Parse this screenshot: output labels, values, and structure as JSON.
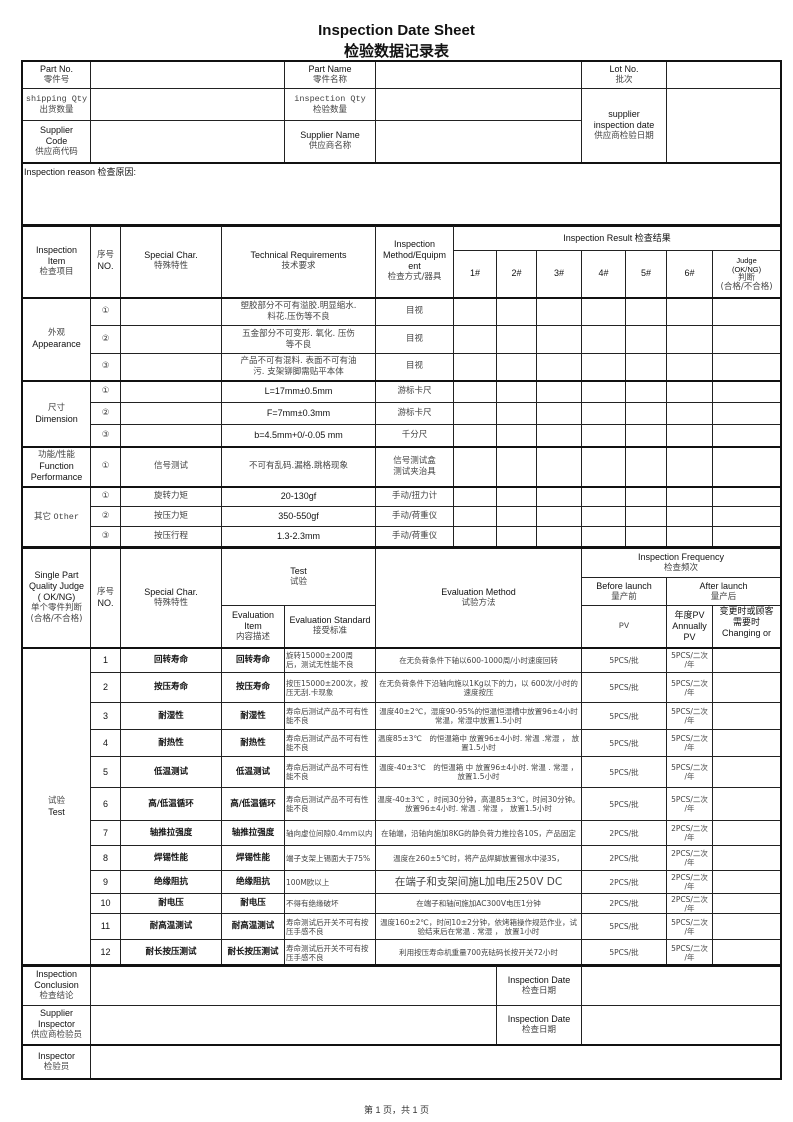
{
  "title_en": "Inspection Date Sheet",
  "title_cn": "检验数据记录表",
  "header": {
    "part_no": {
      "en": "Part No.",
      "cn": "零件号"
    },
    "part_name": {
      "en": "Part Name",
      "cn": "零件名称"
    },
    "lot_no": {
      "en": "Lot No.",
      "cn": "批次"
    },
    "shipping_qty": {
      "en": "shipping Qty",
      "cn": "出货数量"
    },
    "inspection_qty": {
      "en": "inspection Qty",
      "cn": "检验数量"
    },
    "supplier_code": {
      "en": "Supplier\nCode",
      "cn": "供应商代码"
    },
    "supplier_name": {
      "en": "Supplier Name",
      "cn": "供应商名称"
    },
    "supplier_inspection_date": {
      "en": "supplier\ninspection date",
      "cn": "供应商检验日期"
    }
  },
  "inspection_reason": "Inspection reason 检查原因:",
  "inspection": {
    "col_item": {
      "en": "Inspection\nItem",
      "cn": "检查项目"
    },
    "col_no": {
      "cn": "序号",
      "en": "NO."
    },
    "col_special": {
      "en": "Special Char.",
      "cn": "特殊特性"
    },
    "col_req": {
      "en": "Technical Requirements",
      "cn": "技术要求"
    },
    "col_method": {
      "en": "Inspection\nMethod/Equipm\nent",
      "cn": "检查方式/器具"
    },
    "col_result": "Inspection Result 检查结果",
    "samples": [
      "1#",
      "2#",
      "3#",
      "4#",
      "5#",
      "6#"
    ],
    "col_judge": {
      "en": "Judge\n(OK/NG)",
      "cn": "判断\n(合格/不合格)"
    },
    "groups": [
      {
        "label_cn": "外观",
        "label_en": "Appearance",
        "rows": [
          {
            "no": "①",
            "special": "",
            "req": "塑胶部分不可有溢胶.明显缩水.\n料花.压伤等不良",
            "method": "目视"
          },
          {
            "no": "②",
            "special": "",
            "req": "五金部分不可变形. 氧化. 压伤\n等不良",
            "method": "目视"
          },
          {
            "no": "③",
            "special": "",
            "req": "产品不可有混料. 表面不可有油\n污. 支架铆脚需贴平本体",
            "method": "目视"
          }
        ]
      },
      {
        "label_cn": "尺寸",
        "label_en": "Dimension",
        "rows": [
          {
            "no": "①",
            "special": "",
            "req": "L=17mm±0.5mm",
            "method": "游标卡尺"
          },
          {
            "no": "②",
            "special": "",
            "req": "F=7mm±0.3mm",
            "method": "游标卡尺"
          },
          {
            "no": "③",
            "special": "",
            "req": "b=4.5mm+0/-0.05 mm",
            "method": "千分尺"
          }
        ]
      },
      {
        "label_cn": "功能/性能",
        "label_en": "Function\nPerformance",
        "rows": [
          {
            "no": "①",
            "special": "信号测试",
            "req": "不可有乱码.漏格.跳格现象",
            "method": "信号测试盒\n测试夹治具"
          }
        ]
      },
      {
        "label_cn": "其它",
        "label_en": "Other",
        "rows": [
          {
            "no": "①",
            "special": "旋转力矩",
            "req": "20-130gf",
            "method": "手动/扭力计"
          },
          {
            "no": "②",
            "special": "按压力矩",
            "req": "350-550gf",
            "method": "手动/荷重仪"
          },
          {
            "no": "③",
            "special": "按压行程",
            "req": "1.3-2.3mm",
            "method": "手动/荷重仪"
          }
        ]
      }
    ]
  },
  "test": {
    "col_judge": {
      "en": "Single Part\nQuality Judge\n( OK/NG)",
      "cn": "单个零件判断\n(合格/不合格)"
    },
    "col_no": {
      "cn": "序号",
      "en": "NO."
    },
    "col_special": {
      "en": "Special Char.",
      "cn": "特殊特性"
    },
    "col_test": {
      "en": "Test",
      "cn": "试验"
    },
    "col_eval_item": {
      "en": "Evaluation\nItem",
      "cn": "内容描述"
    },
    "col_eval_std": {
      "en": "Evaluation Standard",
      "cn": "接受标准"
    },
    "col_eval_method": {
      "en": "Evaluation Method",
      "cn": "试验方法"
    },
    "col_freq": {
      "en": "Inspection Frequency",
      "cn": "检查频次"
    },
    "col_before": {
      "en": "Before launch",
      "cn": "量产前"
    },
    "col_after": {
      "en": "After  launch",
      "cn": "量产后"
    },
    "col_pv": "PV",
    "col_annual": "年度PV\nAnnually\nPV",
    "col_changing": "变更时或顾客\n需要时\nChanging or",
    "group_label": {
      "cn": "试验",
      "en": "Test"
    },
    "rows": [
      {
        "no": "1",
        "special": "回转寿命",
        "item": "回转寿命",
        "std": "旋转15000±200周\n后，测试无性能不良",
        "method": "在无负荷条件下轴以600-1000周/小时速度回转",
        "pv": "5PCS/批",
        "annual": "5PCS/二次\n/年"
      },
      {
        "no": "2",
        "special": "按压寿命",
        "item": "按压寿命",
        "std": "按压15000±200次，按压无刮.卡现象",
        "method": "在无负荷条件下沿轴向施以1Kg以下的力，以 600次/小时的速度按压",
        "pv": "5PCS/批",
        "annual": "5PCS/二次\n/年"
      },
      {
        "no": "3",
        "special": "耐湿性",
        "item": "耐湿性",
        "std": "寿命后测试产品不可有性能不良",
        "method": "温度40±2℃，湿度90-95%的恒温恒湿槽中放置96±4小时常温，常湿中放置1.5小时",
        "pv": "5PCS/批",
        "annual": "5PCS/二次\n/年"
      },
      {
        "no": "4",
        "special": "耐热性",
        "item": "耐热性",
        "std": "寿命后测试产品不可有性能不良",
        "method": "温度85±3℃　的恒温箱中 放置96±4小时. 常温 .常湿 ， 放置1.5小时",
        "pv": "5PCS/批",
        "annual": "5PCS/二次\n/年"
      },
      {
        "no": "5",
        "special": "低温测试",
        "item": "低温测试",
        "std": "寿命后测试产品不可有性能不良",
        "method": "温度-40±3℃　的恒温箱 中 放置96±4小时. 常温 . 常湿 ， 放置1.5小时",
        "pv": "5PCS/批",
        "annual": "5PCS/二次\n/年"
      },
      {
        "no": "6",
        "special": "高/低温循环",
        "item": "高/低温循环",
        "std": "寿命后测试产品不可有性能不良",
        "method": "温度-40±3℃ ，时间30分钟，高温85±3℃，时间30分钟。 放置96±4小时. 常温 . 常湿 ， 放置1.5小时",
        "pv": "5PCS/批",
        "annual": "5PCS/二次\n/年"
      },
      {
        "no": "7",
        "special": "轴推拉强度",
        "item": "轴推拉强度",
        "std": "轴向虚位间隙0.4mm以内",
        "method": "在轴端，沿轴向施加8KG的静负荷力推拉各10S，产品固定",
        "pv": "2PCS/批",
        "annual": "2PCS/二次\n/年"
      },
      {
        "no": "8",
        "special": "焊锡性能",
        "item": "焊锡性能",
        "std": "端子支架上锡面大于75%",
        "method": "温度在260±5℃时，将产品焊脚放置锡水中浸3S，",
        "pv": "2PCS/批",
        "annual": "2PCS/二次\n/年"
      },
      {
        "no": "9",
        "special": "绝缘阻抗",
        "item": "绝缘阻抗",
        "std": "100M欧以上",
        "method": "在端子和支架间施L加电压250V DC",
        "pv": "2PCS/批",
        "annual": "2PCS/二次\n/年"
      },
      {
        "no": "10",
        "special": "耐电压",
        "item": "耐电压",
        "std": "不得有绝缘破坏",
        "method": "在端子和轴间施加AC300V电压1分钟",
        "pv": "2PCS/批",
        "annual": "2PCS/二次\n/年"
      },
      {
        "no": "11",
        "special": "耐高温测试",
        "item": "耐高温测试",
        "std": "寿命测试后开关不可有按压手感不良",
        "method": "温度160±2℃，时间10±2分钟，依烤箱操作规范作业，试验结束后在常温 . 常湿 ， 放置1小时",
        "pv": "5PCS/批",
        "annual": "5PCS/二次\n/年"
      },
      {
        "no": "12",
        "special": "耐长按压测试",
        "item": "耐长按压测试",
        "std": "寿命测试后开关不可有按压手感不良",
        "method": "利用按压寿命机重量700克砝码长按开关72小时",
        "pv": "5PCS/批",
        "annual": "5PCS/二次\n/年"
      }
    ]
  },
  "footer": {
    "conclusion": {
      "en": "Inspection\nConclusion",
      "cn": "检查结论"
    },
    "supplier_inspector": {
      "en": "Supplier\nInspector",
      "cn": "供应商检验员"
    },
    "inspection_date": {
      "en": "Inspection Date",
      "cn": "检查日期"
    },
    "inspector": {
      "en": "Inspector",
      "cn": "检验员"
    }
  },
  "page": "第 1 页，共 1 页"
}
